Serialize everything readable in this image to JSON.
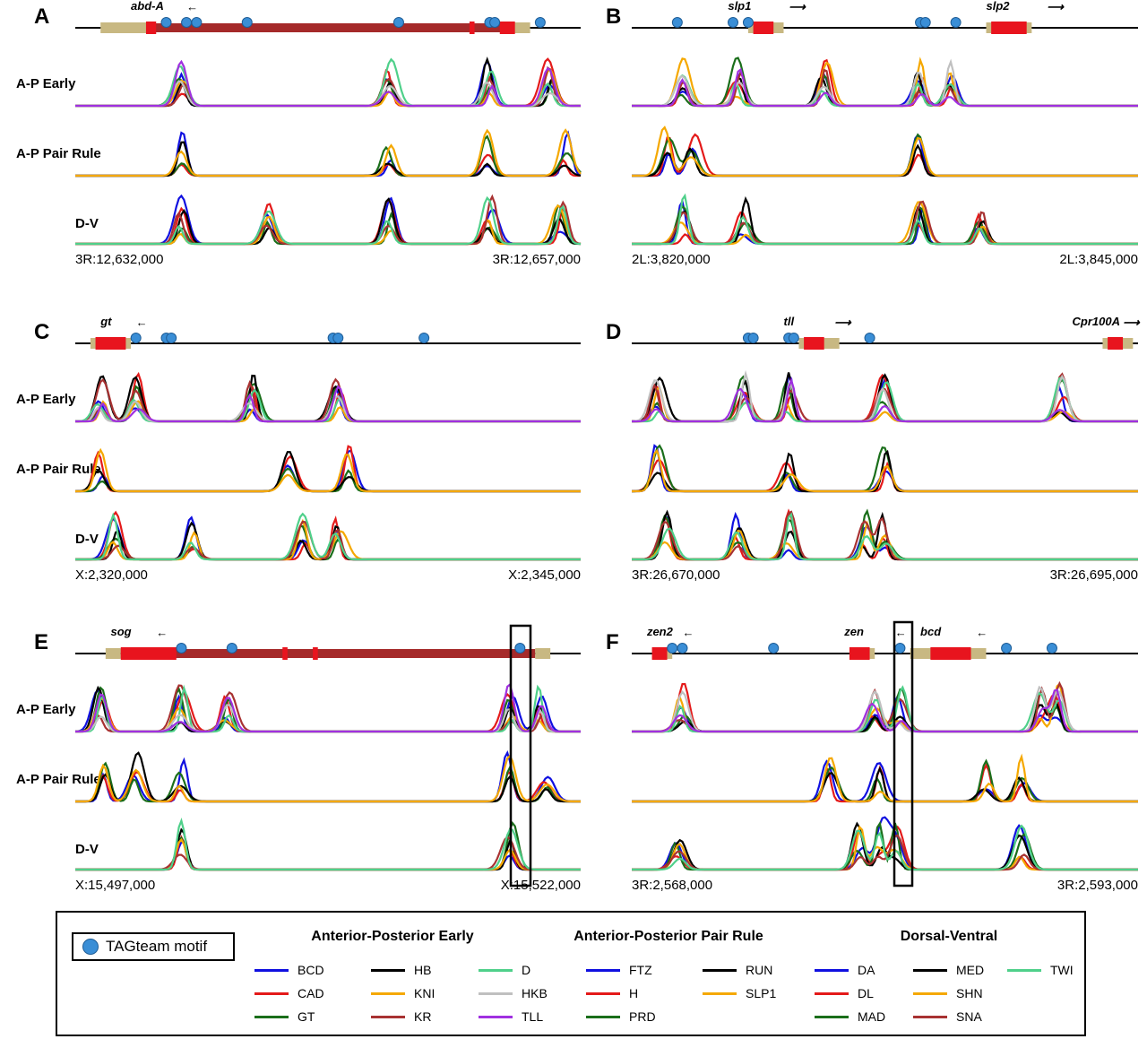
{
  "track_labels": [
    "A-P Early",
    "A-P Pair Rule",
    "D-V"
  ],
  "colors": {
    "BCD": "#1010e0",
    "CAD": "#e41a1a",
    "GT": "#1a6e1a",
    "HB": "#000000",
    "KNI": "#f5a800",
    "KR": "#a83232",
    "D": "#4fd08a",
    "HKB": "#c0c0c0",
    "TLL": "#a030e0",
    "FTZ": "#1010e0",
    "H": "#e41a1a",
    "PRD": "#1a6e1a",
    "RUN": "#000000",
    "SLP1": "#f5a800",
    "DA": "#1010e0",
    "DL": "#e41a1a",
    "MAD": "#1a6e1a",
    "MED": "#000000",
    "SHN": "#f5a800",
    "SNA": "#a83232",
    "TWI": "#4fd08a",
    "motif": "#3a8ed6",
    "highlight_box": "#000000"
  },
  "panels": [
    {
      "letter": "A",
      "coord_left": "3R:12,632,000",
      "coord_right": "3R:12,657,000",
      "genes": [
        {
          "name": "abd-A",
          "arrow": "←"
        }
      ]
    },
    {
      "letter": "B",
      "coord_left": "2L:3,820,000",
      "coord_right": "2L:3,845,000",
      "genes": [
        {
          "name": "slp1",
          "arrow": "⟶"
        },
        {
          "name": "slp2",
          "arrow": "⟶"
        }
      ]
    },
    {
      "letter": "C",
      "coord_left": "X:2,320,000",
      "coord_right": "X:2,345,000",
      "genes": [
        {
          "name": "gt",
          "arrow": "←"
        }
      ]
    },
    {
      "letter": "D",
      "coord_left": "3R:26,670,000",
      "coord_right": "3R:26,695,000",
      "genes": [
        {
          "name": "tll",
          "arrow": "⟶"
        },
        {
          "name": "Cpr100A",
          "arrow": "⟶"
        }
      ]
    },
    {
      "letter": "E",
      "coord_left": "X:15,497,000",
      "coord_right": "X:15,522,000",
      "genes": [
        {
          "name": "sog",
          "arrow": "←"
        }
      ]
    },
    {
      "letter": "F",
      "coord_left": "3R:2,568,000",
      "coord_right": "3R:2,593,000",
      "genes": [
        {
          "name": "zen2",
          "arrow": "←"
        },
        {
          "name": "zen",
          "arrow": "←"
        },
        {
          "name": "bcd",
          "arrow": "←"
        }
      ]
    }
  ],
  "legend": {
    "motif_label": "TAGteam motif",
    "groups": [
      {
        "title": "Anterior-Posterior Early",
        "items": [
          "BCD",
          "CAD",
          "GT",
          "HB",
          "KNI",
          "KR",
          "D",
          "HKB",
          "TLL"
        ]
      },
      {
        "title": "Anterior-Posterior Pair Rule",
        "items": [
          "FTZ",
          "H",
          "PRD",
          "RUN",
          "SLP1"
        ]
      },
      {
        "title": "Dorsal-Ventral",
        "items": [
          "DA",
          "DL",
          "MAD",
          "MED",
          "SHN",
          "SNA",
          "TWI"
        ]
      }
    ]
  }
}
